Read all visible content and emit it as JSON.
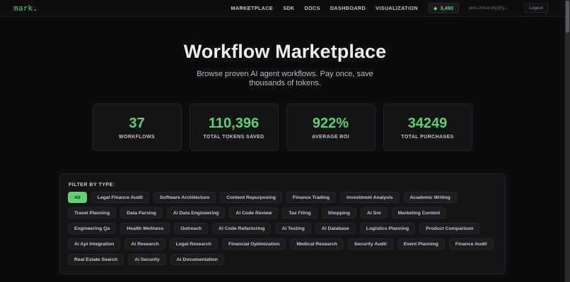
{
  "nav": {
    "logo": "mark",
    "logo_dot": ".",
    "links": [
      "MARKETPLACE",
      "SDK",
      "DOCS",
      "DASHBOARD",
      "VISUALIZATION"
    ],
    "credits_icon": "diamond-icon",
    "credits_symbol": "◆",
    "credits": "3,490",
    "email": "jeet.university@g...",
    "logout": "Logout"
  },
  "hero": {
    "title": "Workflow Marketplace",
    "subtitle": "Browse proven AI agent workflows. Pay once, save thousands of tokens."
  },
  "stats": [
    {
      "value": "37",
      "label": "WORKFLOWS"
    },
    {
      "value": "110,396",
      "label": "TOTAL TOKENS SAVED"
    },
    {
      "value": "922%",
      "label": "AVERAGE ROI"
    },
    {
      "value": "34249",
      "label": "TOTAL PURCHASES"
    }
  ],
  "filter": {
    "label": "FILTER BY TYPE:",
    "active": "All",
    "chips": [
      "All",
      "Legal Finance Audit",
      "Software Architecture",
      "Content Repurposing",
      "Finance Trading",
      "Investment Analysis",
      "Academic Writing",
      "Travel Planning",
      "Data Parsing",
      "Ai Data Engineering",
      "Ai Code Review",
      "Tax Filing",
      "Shopping",
      "Ai Sre",
      "Marketing Content",
      "Engineering Qa",
      "Health Wellness",
      "Outreach",
      "Ai Code Refactoring",
      "Ai Testing",
      "Ai Database",
      "Logistics Planning",
      "Product Comparison",
      "Ai Api Integration",
      "Ai Research",
      "Legal Research",
      "Financial Optimization",
      "Medical Research",
      "Security Audit",
      "Event Planning",
      "Finance Audit",
      "Real Estate Search",
      "Ai Security",
      "Ai Documentation"
    ]
  },
  "colors": {
    "accent": "#5fd16f",
    "background": "#0c0c0e",
    "card": "#141416"
  }
}
